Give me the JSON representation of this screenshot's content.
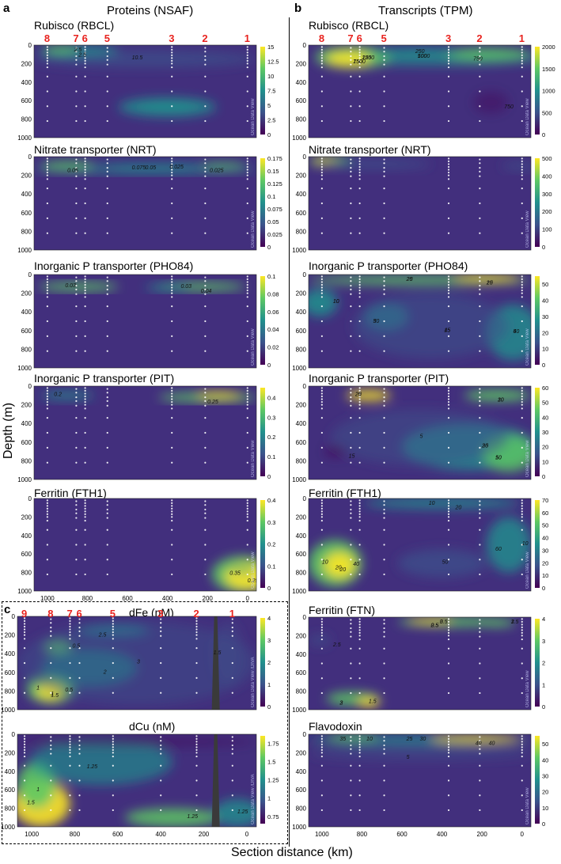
{
  "figure": {
    "panel_labels": {
      "a": "a",
      "b": "b",
      "c": "c"
    },
    "column_titles": {
      "left": "Proteins (NSAF)",
      "right": "Transcripts (TPM)"
    },
    "y_axis_label": "Depth (m)",
    "x_axis_label": "Section distance (km)",
    "watermark": "Ocean Data View",
    "watermark_c": "Ocean Data View /DIVA",
    "colors": {
      "viridis": [
        "#440154",
        "#3b528b",
        "#21908d",
        "#5dc863",
        "#fde725"
      ],
      "station_label": "#e8231f",
      "dots": "#ffffff"
    }
  },
  "chart_data": [
    {
      "id": "a1",
      "type": "heatmap",
      "title": "Rubisco (RBCL)",
      "ylim": [
        1000,
        0
      ],
      "yticks": [
        "0",
        "200",
        "400",
        "600",
        "800",
        "1000"
      ],
      "stations": [
        "8",
        "7",
        "6",
        "5",
        "3",
        "2",
        "1"
      ],
      "colorbar": {
        "min": 0,
        "max": 15,
        "ticks": [
          "15",
          "12.5",
          "10",
          "7.5",
          "5",
          "2.5",
          "0"
        ]
      },
      "contour_labels": [
        "10.5",
        "2.5",
        "2.5"
      ]
    },
    {
      "id": "a2",
      "type": "heatmap",
      "title": "Nitrate transporter (NRT)",
      "ylim": [
        1000,
        0
      ],
      "yticks": [
        "0",
        "200",
        "400",
        "600",
        "800",
        "1000"
      ],
      "colorbar": {
        "min": 0,
        "max": 0.175,
        "ticks": [
          "0.175",
          "0.15",
          "0.125",
          "0.1",
          "0.075",
          "0.05",
          "0.025",
          "0"
        ]
      },
      "contour_labels": [
        "0.075",
        "0.05",
        "0.025",
        "0.025",
        "0.05"
      ]
    },
    {
      "id": "a3",
      "type": "heatmap",
      "title": "Inorganic P transporter (PHO84)",
      "ylim": [
        1000,
        0
      ],
      "yticks": [
        "0",
        "200",
        "400",
        "600",
        "800",
        "1000"
      ],
      "colorbar": {
        "min": 0,
        "max": 0.1,
        "ticks": [
          "0.1",
          "0.08",
          "0.06",
          "0.04",
          "0.02",
          "0"
        ]
      },
      "contour_labels": [
        "0.03",
        "0.04",
        "0.03"
      ]
    },
    {
      "id": "a4",
      "type": "heatmap",
      "title": "Inorganic P transporter (PIT)",
      "ylim": [
        1000,
        0
      ],
      "yticks": [
        "0",
        "200",
        "400",
        "600",
        "800",
        "1000"
      ],
      "colorbar": {
        "min": 0,
        "max": 0.45,
        "ticks": [
          "0.4",
          "0.3",
          "0.2",
          "0.1",
          "0"
        ]
      },
      "contour_labels": [
        "0.2",
        "0.25"
      ]
    },
    {
      "id": "a5",
      "type": "heatmap",
      "title": "Ferritin (FTH1)",
      "ylim": [
        1000,
        0
      ],
      "yticks": [
        "0",
        "200",
        "400",
        "600",
        "800",
        "1000"
      ],
      "xticks": [
        "1000",
        "800",
        "600",
        "400",
        "200",
        "0"
      ],
      "colorbar": {
        "min": 0,
        "max": 0.4,
        "ticks": [
          "0.4",
          "0.3",
          "0.2",
          "0.1",
          "0"
        ]
      },
      "contour_labels": [
        "0.35",
        "0.25",
        "0.15"
      ]
    },
    {
      "id": "b1",
      "type": "heatmap",
      "title": "Rubisco (RBCL)",
      "ylim": [
        1000,
        0
      ],
      "yticks": [
        "0",
        "200",
        "400",
        "600",
        "800",
        "1000"
      ],
      "stations": [
        "8",
        "7",
        "6",
        "5",
        "3",
        "2",
        "1"
      ],
      "colorbar": {
        "min": 0,
        "max": 2000,
        "ticks": [
          "2000",
          "1500",
          "1000",
          "500",
          "0"
        ]
      },
      "contour_labels": [
        "1000",
        "1500",
        "1250",
        "750",
        "250",
        "750",
        "500",
        "750",
        "250"
      ]
    },
    {
      "id": "b2",
      "type": "heatmap",
      "title": "Nitrate transporter (NRT)",
      "ylim": [
        1000,
        0
      ],
      "yticks": [
        "0",
        "200",
        "400",
        "600",
        "800",
        "1000"
      ],
      "colorbar": {
        "min": 0,
        "max": 500,
        "ticks": [
          "500",
          "400",
          "300",
          "200",
          "100",
          "0"
        ]
      },
      "contour_labels": []
    },
    {
      "id": "b3",
      "type": "heatmap",
      "title": "Inorganic P transporter (PHO84)",
      "ylim": [
        1000,
        0
      ],
      "yticks": [
        "0",
        "200",
        "400",
        "600",
        "800",
        "1000"
      ],
      "colorbar": {
        "min": 0,
        "max": 55,
        "ticks": [
          "50",
          "40",
          "30",
          "20",
          "10",
          "0"
        ]
      },
      "contour_labels": [
        "20",
        "15",
        "10",
        "30",
        "40",
        "45",
        "25",
        "20",
        "10",
        "5",
        "5",
        "15"
      ]
    },
    {
      "id": "b4",
      "type": "heatmap",
      "title": "Inorganic P transporter (PIT)",
      "ylim": [
        1000,
        0
      ],
      "yticks": [
        "0",
        "200",
        "400",
        "600",
        "800",
        "1000"
      ],
      "colorbar": {
        "min": 0,
        "max": 60,
        "ticks": [
          "60",
          "50",
          "40",
          "30",
          "20",
          "10",
          "0"
        ]
      },
      "contour_labels": [
        "25",
        "10",
        "30",
        "50",
        "5",
        "15",
        "20",
        "30",
        "25",
        "10"
      ]
    },
    {
      "id": "b5",
      "type": "heatmap",
      "title": "Ferritin (FTH1)",
      "ylim": [
        1000,
        0
      ],
      "yticks": [
        "0",
        "200",
        "400",
        "600",
        "800",
        "1000"
      ],
      "colorbar": {
        "min": 0,
        "max": 70,
        "ticks": [
          "70",
          "60",
          "50",
          "40",
          "30",
          "20",
          "10",
          "0"
        ]
      },
      "contour_labels": [
        "10",
        "20",
        "40",
        "60",
        "50",
        "20",
        "10",
        "20",
        "10"
      ]
    },
    {
      "id": "b6",
      "type": "heatmap",
      "title": "Ferritin (FTN)",
      "ylim": [
        1000,
        0
      ],
      "yticks": [
        "0",
        "200",
        "400",
        "600",
        "800",
        "1000"
      ],
      "colorbar": {
        "min": 0,
        "max": 4,
        "ticks": [
          "4",
          "3",
          "2",
          "1",
          "0"
        ]
      },
      "contour_labels": [
        "0.5",
        "2.5",
        "3",
        "2",
        "1.5",
        "2.5",
        "3",
        "0.5",
        "1.5",
        "3"
      ]
    },
    {
      "id": "b7",
      "type": "heatmap",
      "title": "Flavodoxin",
      "ylim": [
        1000,
        0
      ],
      "yticks": [
        "0",
        "200",
        "400",
        "600",
        "800",
        "1000"
      ],
      "xticks": [
        "1000",
        "800",
        "600",
        "400",
        "200",
        "0"
      ],
      "colorbar": {
        "min": 0,
        "max": 55,
        "ticks": [
          "50",
          "40",
          "30",
          "20",
          "10",
          "0"
        ]
      },
      "contour_labels": [
        "25",
        "40",
        "10",
        "5",
        "30",
        "40",
        "35"
      ]
    },
    {
      "id": "c1",
      "type": "heatmap",
      "title": "dFe (nM)",
      "ylim": [
        1000,
        0
      ],
      "yticks": [
        "0",
        "200",
        "400",
        "600",
        "800",
        "1000"
      ],
      "stations": [
        "9",
        "8",
        "7",
        "6",
        "5",
        "3",
        "2",
        "1"
      ],
      "colorbar": {
        "min": 0,
        "max": 4,
        "ticks": [
          "4",
          "3",
          "2",
          "1",
          "0"
        ]
      },
      "contour_labels": [
        "1",
        "1.5",
        "0.5",
        "2.5",
        "3",
        "2",
        "1.5",
        "1",
        "0.5"
      ]
    },
    {
      "id": "c2",
      "type": "heatmap",
      "title": "dCu (nM)",
      "ylim": [
        1000,
        0
      ],
      "yticks": [
        "0",
        "200",
        "400",
        "600",
        "800",
        "1000"
      ],
      "xticks": [
        "1000",
        "800",
        "600",
        "400",
        "200",
        "0"
      ],
      "colorbar": {
        "min": 0.65,
        "max": 1.85,
        "ticks": [
          "1.75",
          "1.5",
          "1.25",
          "1",
          "0.75"
        ]
      },
      "contour_labels": [
        "1.5",
        "1",
        "1.25",
        "1.25",
        "1.25"
      ]
    }
  ]
}
